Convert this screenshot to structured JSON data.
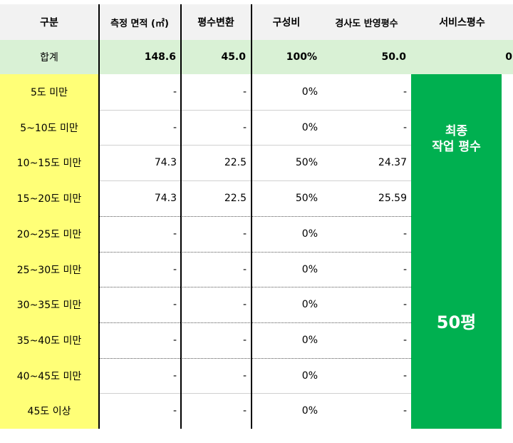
{
  "headers": {
    "category": "구분",
    "area": "측정 면적 (㎡)",
    "pyeong": "평수변환",
    "ratio": "구성비",
    "slope": "경사도 반영평수",
    "service": "서비스평수"
  },
  "total": {
    "label": "합계",
    "area": "148.6",
    "pyeong": "45.0",
    "ratio": "100%",
    "slope": "50.0",
    "service": "0"
  },
  "rows": [
    {
      "category": "5도 미만",
      "area": "-",
      "pyeong": "-",
      "ratio": "0%",
      "slope": "-"
    },
    {
      "category": "5~10도 미만",
      "area": "-",
      "pyeong": "-",
      "ratio": "0%",
      "slope": "-"
    },
    {
      "category": "10~15도 미만",
      "area": "74.3",
      "pyeong": "22.5",
      "ratio": "50%",
      "slope": "24.37"
    },
    {
      "category": "15~20도 미만",
      "area": "74.3",
      "pyeong": "22.5",
      "ratio": "50%",
      "slope": "25.59"
    },
    {
      "category": "20~25도 미만",
      "area": "-",
      "pyeong": "-",
      "ratio": "0%",
      "slope": "-"
    },
    {
      "category": "25~30도 미만",
      "area": "-",
      "pyeong": "-",
      "ratio": "0%",
      "slope": "-"
    },
    {
      "category": "30~35도 미만",
      "area": "-",
      "pyeong": "-",
      "ratio": "0%",
      "slope": "-"
    },
    {
      "category": "35~40도 미만",
      "area": "-",
      "pyeong": "-",
      "ratio": "0%",
      "slope": "-"
    },
    {
      "category": "40~45도 미만",
      "area": "-",
      "pyeong": "-",
      "ratio": "0%",
      "slope": "-"
    },
    {
      "category": "45도 이상",
      "area": "-",
      "pyeong": "-",
      "ratio": "0%",
      "slope": "-"
    }
  ],
  "final": {
    "label_line1": "최종",
    "label_line2": "작업 평수",
    "value": "50평"
  },
  "colors": {
    "header_bg": "#f2f2f2",
    "total_bg": "#d9f1d5",
    "category_bg": "#ffff77",
    "final_bg": "#00b050"
  }
}
